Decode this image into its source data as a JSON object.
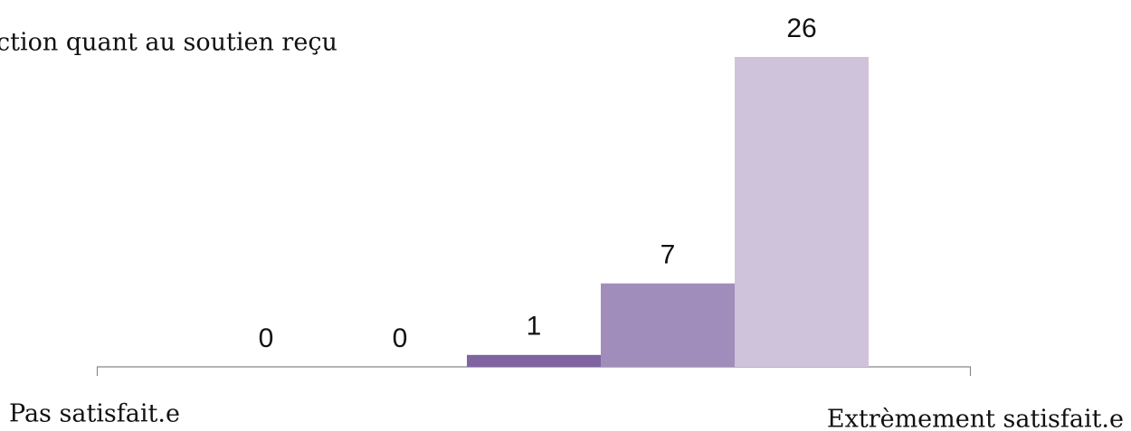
{
  "chart_data": {
    "type": "bar",
    "title": "ction quant au soutien reçu",
    "categories": [
      "Pas satisfait.e",
      null,
      null,
      null,
      "Extrèmement satisfait.e"
    ],
    "values": [
      0,
      0,
      1,
      7,
      26
    ],
    "colors": [
      null,
      null,
      "#8064a2",
      "#a18dbb",
      "#cfc3db"
    ],
    "ylim": [
      0,
      26
    ],
    "grid": false
  }
}
